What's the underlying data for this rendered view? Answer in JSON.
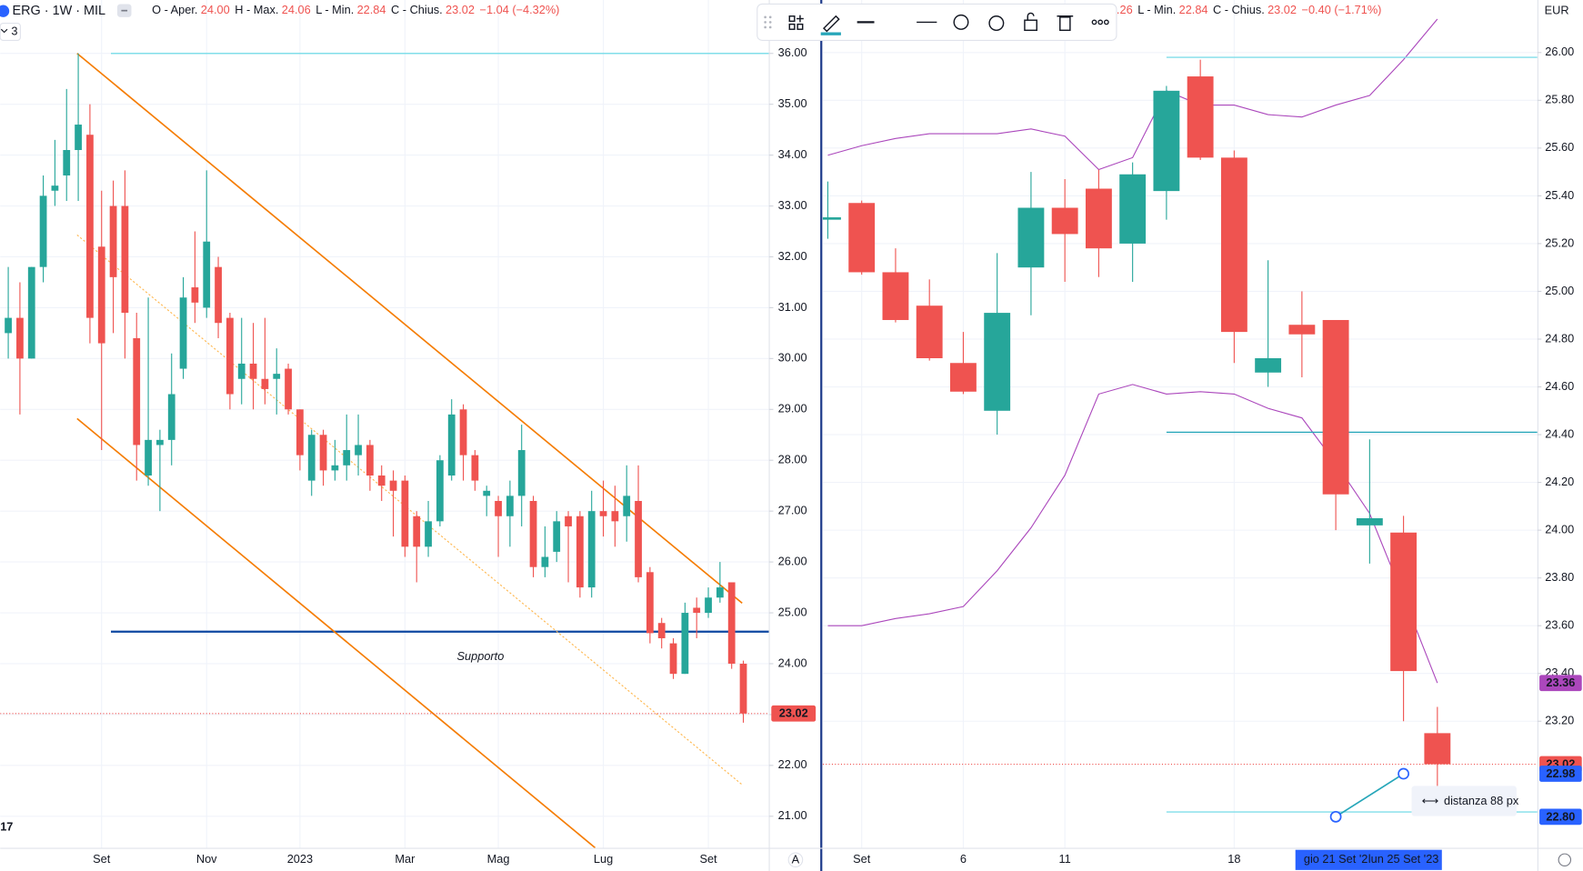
{
  "chart_data": [
    {
      "type": "candlestick",
      "header": {
        "symbol": "ERG · 1W · MIL",
        "items": [
          {
            "label": "O - Aper.",
            "value": "24.00"
          },
          {
            "label": "H - Max.",
            "value": "24.06"
          },
          {
            "label": "L - Min.",
            "value": "22.84"
          },
          {
            "label": "C - Chius.",
            "value": "23.02"
          }
        ],
        "change": "−1.04 (−4.32%)",
        "indicator_count": "3"
      },
      "logo": "17",
      "axis_mode": "A",
      "up_color": "#26a69a",
      "down_color": "#ef5350",
      "categories": [
        null,
        null,
        null,
        null,
        null,
        null,
        null,
        null,
        "Set",
        null,
        null,
        null,
        null,
        null,
        null,
        null,
        null,
        "Nov",
        null,
        null,
        null,
        null,
        null,
        null,
        null,
        "2023",
        null,
        null,
        null,
        null,
        null,
        null,
        null,
        null,
        "Mar",
        null,
        null,
        null,
        null,
        null,
        null,
        null,
        "Mag",
        null,
        null,
        null,
        null,
        null,
        null,
        null,
        null,
        "Lug",
        null,
        null,
        null,
        null,
        null,
        null,
        null,
        null,
        "Set",
        null,
        null,
        null
      ],
      "open": [
        30.5,
        30.8,
        30.0,
        31.8,
        33.3,
        33.6,
        34.1,
        34.4,
        32.2,
        33.0,
        33.0,
        30.4,
        27.7,
        28.3,
        28.4,
        29.8,
        31.4,
        31.0,
        31.8,
        30.8,
        29.6,
        29.9,
        29.6,
        29.6,
        29.8,
        29.0,
        27.6,
        28.5,
        27.8,
        27.9,
        28.1,
        28.3,
        27.7,
        27.6,
        27.6,
        26.9,
        26.3,
        26.8,
        27.7,
        29.0,
        28.1,
        27.3,
        27.2,
        26.9,
        27.3,
        27.2,
        25.9,
        26.2,
        26.9,
        26.9,
        25.5,
        27.0,
        27.0,
        26.9,
        27.2,
        25.8,
        24.8,
        24.4,
        23.8,
        25.1,
        25.0,
        25.3,
        25.6,
        24.0
      ],
      "high": [
        31.8,
        31.5,
        31.8,
        33.6,
        34.3,
        35.3,
        36.0,
        35.0,
        33.3,
        33.5,
        33.7,
        30.9,
        31.2,
        28.6,
        30.1,
        31.6,
        32.5,
        33.7,
        32.0,
        30.9,
        30.8,
        30.7,
        30.8,
        30.2,
        29.9,
        29.0,
        28.6,
        28.6,
        28.4,
        28.9,
        28.9,
        28.4,
        27.9,
        27.8,
        27.7,
        27.0,
        27.2,
        28.1,
        29.2,
        29.1,
        28.2,
        27.5,
        27.3,
        27.6,
        28.7,
        27.3,
        26.7,
        27.0,
        27.0,
        27.0,
        27.4,
        27.6,
        27.5,
        27.9,
        27.9,
        25.9,
        24.9,
        24.5,
        25.2,
        25.3,
        25.5,
        26.0,
        25.6,
        24.06
      ],
      "low": [
        30.0,
        28.9,
        30.0,
        31.5,
        33.0,
        33.1,
        33.1,
        30.3,
        28.2,
        30.5,
        30.0,
        27.6,
        27.5,
        27.0,
        27.9,
        29.6,
        30.7,
        30.8,
        30.4,
        29.0,
        29.1,
        29.0,
        29.1,
        28.9,
        28.9,
        27.8,
        27.3,
        27.5,
        27.6,
        27.6,
        27.7,
        27.4,
        27.2,
        26.5,
        26.1,
        25.6,
        26.1,
        26.7,
        27.6,
        27.6,
        27.4,
        26.9,
        26.1,
        26.3,
        26.7,
        25.7,
        25.7,
        26.0,
        25.6,
        25.3,
        25.3,
        26.5,
        26.3,
        26.4,
        25.6,
        24.4,
        24.3,
        23.7,
        23.8,
        24.5,
        24.9,
        25.2,
        23.9,
        22.84
      ],
      "close": [
        30.8,
        30.0,
        31.8,
        33.2,
        33.4,
        34.1,
        34.6,
        30.8,
        30.3,
        31.6,
        30.9,
        28.3,
        28.4,
        28.4,
        29.3,
        31.2,
        31.1,
        32.3,
        30.7,
        29.3,
        29.9,
        29.6,
        29.4,
        29.7,
        29.0,
        28.1,
        28.5,
        27.8,
        27.9,
        28.2,
        28.3,
        27.7,
        27.5,
        27.4,
        26.3,
        26.3,
        26.8,
        28.0,
        28.9,
        28.1,
        27.6,
        27.4,
        26.9,
        27.3,
        28.2,
        25.9,
        26.1,
        26.8,
        26.7,
        25.5,
        27.0,
        26.9,
        26.8,
        27.3,
        25.7,
        24.6,
        24.5,
        23.8,
        25.0,
        25.0,
        25.3,
        25.5,
        24.0,
        23.02
      ],
      "ylim": [
        20.38,
        37.05
      ],
      "yticks": [
        {
          "value": 36,
          "label": "36.00"
        },
        {
          "value": 35,
          "label": "35.00"
        },
        {
          "value": 34,
          "label": "34.00"
        },
        {
          "value": 33,
          "label": "33.00"
        },
        {
          "value": 32,
          "label": "32.00"
        },
        {
          "value": 31,
          "label": "31.00"
        },
        {
          "value": 30,
          "label": "30.00"
        },
        {
          "value": 29,
          "label": "29.00"
        },
        {
          "value": 28,
          "label": "28.00"
        },
        {
          "value": 27,
          "label": "27.00"
        },
        {
          "value": 26,
          "label": "26.00"
        },
        {
          "value": 25,
          "label": "25.00"
        },
        {
          "value": 24,
          "label": "24.00"
        },
        {
          "value": 23,
          "label": "23.00"
        },
        {
          "value": 22,
          "label": "22.00"
        },
        {
          "value": 21,
          "label": "21.00"
        }
      ],
      "grid": true,
      "hlines": [
        {
          "value": 36.0,
          "from": 8.8,
          "color": "#80deea"
        },
        {
          "value": 24.63,
          "from": 8.8,
          "color": "#0d47a1",
          "label": "Supporto"
        }
      ],
      "trendlines": [
        {
          "x": [
            5.9,
            62.9
          ],
          "y": [
            36.0,
            25.19
          ],
          "color": "#f57c00",
          "dash": false
        },
        {
          "x": [
            5.9,
            50.3
          ],
          "y": [
            28.82,
            20.38
          ],
          "color": "#f57c00",
          "dash": false
        },
        {
          "x": [
            5.9,
            62.9
          ],
          "y": [
            32.43,
            21.62
          ],
          "color": "#ffb74d",
          "dash": true
        }
      ],
      "price_labels": [
        {
          "value": 23.02,
          "label": "23.02",
          "color": "#ef5350"
        }
      ]
    },
    {
      "type": "candlestick",
      "header": {
        "fragment": ".26",
        "items": [
          {
            "label": "L - Min.",
            "value": "22.84"
          },
          {
            "label": "C - Chius.",
            "value": "23.02"
          }
        ],
        "change": "−0.40 (−1.71%)"
      },
      "currency": "EUR",
      "toolbar": {
        "line_width": "2px"
      },
      "up_color": "#26a69a",
      "down_color": "#ef5350",
      "categories": [
        null,
        "Set",
        null,
        null,
        "6",
        null,
        null,
        "11",
        null,
        null,
        null,
        null,
        "18",
        null,
        null,
        "gio 21 Set '2",
        null,
        "lun 25 Set '23",
        null
      ],
      "open": [
        25.3,
        25.37,
        25.08,
        24.94,
        24.7,
        24.5,
        25.1,
        25.35,
        25.43,
        25.2,
        25.42,
        25.9,
        25.56,
        24.66,
        24.86,
        24.88,
        24.02,
        23.99,
        23.15
      ],
      "high": [
        25.46,
        25.38,
        25.18,
        25.05,
        24.83,
        25.16,
        25.5,
        25.47,
        25.51,
        25.54,
        25.86,
        25.97,
        25.59,
        25.13,
        25.0,
        24.88,
        24.38,
        24.06,
        23.26
      ],
      "low": [
        25.22,
        25.07,
        24.87,
        24.71,
        24.57,
        24.4,
        24.9,
        25.04,
        25.06,
        25.04,
        25.3,
        25.55,
        24.7,
        24.6,
        24.64,
        24.0,
        23.86,
        23.2,
        22.84
      ],
      "close": [
        25.31,
        25.08,
        24.88,
        24.72,
        24.58,
        24.91,
        25.35,
        25.24,
        25.18,
        25.49,
        25.84,
        25.56,
        24.83,
        24.72,
        24.82,
        24.15,
        24.05,
        23.41,
        23.02
      ],
      "bands": {
        "color": "#ab47bc",
        "upper": [
          25.57,
          25.61,
          25.64,
          25.66,
          25.66,
          25.66,
          25.68,
          25.65,
          25.51,
          25.56,
          25.84,
          25.78,
          25.78,
          25.74,
          25.73,
          25.78,
          25.82,
          25.97,
          26.14
        ],
        "lower": [
          23.6,
          23.6,
          23.63,
          23.65,
          23.68,
          23.83,
          24.01,
          24.23,
          24.57,
          24.61,
          24.57,
          24.58,
          24.57,
          24.51,
          24.47,
          24.28,
          24.07,
          23.72,
          23.36
        ]
      },
      "ylim": [
        22.67,
        26.22
      ],
      "yticks": [
        {
          "value": 26.0,
          "label": "26.00"
        },
        {
          "value": 25.8,
          "label": "25.80"
        },
        {
          "value": 25.6,
          "label": "25.60"
        },
        {
          "value": 25.4,
          "label": "25.40"
        },
        {
          "value": 25.2,
          "label": "25.20"
        },
        {
          "value": 25.0,
          "label": "25.00"
        },
        {
          "value": 24.8,
          "label": "24.80"
        },
        {
          "value": 24.6,
          "label": "24.60"
        },
        {
          "value": 24.4,
          "label": "24.40"
        },
        {
          "value": 24.2,
          "label": "24.20"
        },
        {
          "value": 24.0,
          "label": "24.00"
        },
        {
          "value": 23.8,
          "label": "23.80"
        },
        {
          "value": 23.6,
          "label": "23.60"
        },
        {
          "value": 23.4,
          "label": "23.40"
        },
        {
          "value": 23.2,
          "label": "23.20"
        }
      ],
      "grid": true,
      "hlines": [
        {
          "value": 25.98,
          "from": 10,
          "color": "#80deea"
        },
        {
          "value": 24.41,
          "from": 10,
          "color": "#26a6b9"
        },
        {
          "value": 22.82,
          "from": 10,
          "color": "#80deea"
        }
      ],
      "measure": {
        "x": [
          15,
          17
        ],
        "y": [
          22.8,
          22.98
        ],
        "label": "distanza 88 px",
        "color": "#2962ff"
      },
      "price_labels": [
        {
          "value": 23.36,
          "label": "23.36",
          "color": "#ab47bc"
        },
        {
          "value": 23.02,
          "label": "23.02",
          "color": "#ef5350"
        },
        {
          "value": 22.98,
          "label": "22.98",
          "color": "#2962ff"
        },
        {
          "value": 22.8,
          "label": "22.80",
          "color": "#2962ff"
        }
      ]
    }
  ]
}
